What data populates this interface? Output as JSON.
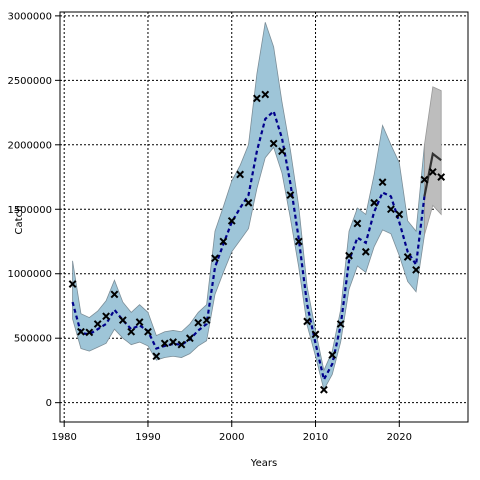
{
  "chart_data": {
    "type": "line",
    "title": "",
    "xlabel": "Years",
    "ylabel": "Catch",
    "xlim": [
      1979.5,
      2028.2
    ],
    "ylim": [
      -150000,
      3030000
    ],
    "xticks": [
      1980,
      1990,
      2000,
      2010,
      2020
    ],
    "yticks": [
      0,
      500000,
      1000000,
      1500000,
      2000000,
      2500000,
      3000000
    ],
    "grid": true,
    "colors": {
      "band": "#9ec5d8",
      "band_edge": "#7c8e98",
      "forecast_band": "#bdbdbd",
      "fit_line": "#00008b",
      "forecast_line": "#333333",
      "observed": "#000000"
    },
    "years": [
      1981,
      1982,
      1983,
      1984,
      1985,
      1986,
      1987,
      1988,
      1989,
      1990,
      1991,
      1992,
      1993,
      1994,
      1995,
      1996,
      1997,
      1998,
      1999,
      2000,
      2001,
      2002,
      2003,
      2004,
      2005,
      2006,
      2007,
      2008,
      2009,
      2010,
      2011,
      2012,
      2013,
      2014,
      2015,
      2016,
      2017,
      2018,
      2019,
      2020,
      2021,
      2022,
      2023
    ],
    "observed": [
      920000,
      550000,
      545000,
      610000,
      670000,
      840000,
      640000,
      550000,
      625000,
      550000,
      360000,
      460000,
      470000,
      450000,
      500000,
      620000,
      640000,
      1120000,
      1250000,
      1410000,
      1770000,
      1550000,
      2360000,
      2390000,
      2010000,
      1950000,
      1610000,
      1250000,
      630000,
      530000,
      100000,
      370000,
      610000,
      1140000,
      1390000,
      1170000,
      1550000,
      1710000,
      1500000,
      1460000,
      1130000,
      1030000,
      1730000
    ],
    "fit": [
      780000,
      540000,
      530000,
      570000,
      610000,
      720000,
      640000,
      570000,
      600000,
      555000,
      420000,
      440000,
      455000,
      450000,
      490000,
      560000,
      610000,
      1050000,
      1230000,
      1400000,
      1510000,
      1610000,
      1950000,
      2200000,
      2260000,
      2050000,
      1700000,
      1270000,
      760000,
      460000,
      180000,
      300000,
      600000,
      1100000,
      1280000,
      1240000,
      1480000,
      1630000,
      1600000,
      1400000,
      1170000,
      1070000,
      1600000
    ],
    "fit_lower": [
      650000,
      420000,
      400000,
      430000,
      460000,
      570000,
      500000,
      450000,
      470000,
      440000,
      330000,
      350000,
      360000,
      350000,
      380000,
      440000,
      480000,
      840000,
      1010000,
      1170000,
      1260000,
      1350000,
      1660000,
      1900000,
      1980000,
      1780000,
      1430000,
      1050000,
      600000,
      360000,
      100000,
      220000,
      470000,
      880000,
      1060000,
      1010000,
      1210000,
      1340000,
      1310000,
      1140000,
      940000,
      860000,
      1300000
    ],
    "fit_upper": [
      1100000,
      690000,
      660000,
      710000,
      790000,
      950000,
      780000,
      700000,
      760000,
      700000,
      520000,
      550000,
      560000,
      550000,
      610000,
      700000,
      760000,
      1330000,
      1520000,
      1720000,
      1840000,
      2000000,
      2550000,
      2950000,
      2760000,
      2330000,
      1960000,
      1520000,
      900000,
      560000,
      250000,
      400000,
      720000,
      1330000,
      1510000,
      1460000,
      1770000,
      2150000,
      2000000,
      1860000,
      1410000,
      1330000,
      2000000
    ],
    "forecast_years": [
      2023,
      2024,
      2025
    ],
    "forecast": [
      1600000,
      1930000,
      1880000
    ],
    "forecast_lower": [
      1300000,
      1530000,
      1460000
    ],
    "forecast_upper": [
      2000000,
      2450000,
      2420000
    ],
    "forecast_observed": [
      1790000,
      1750000
    ]
  }
}
